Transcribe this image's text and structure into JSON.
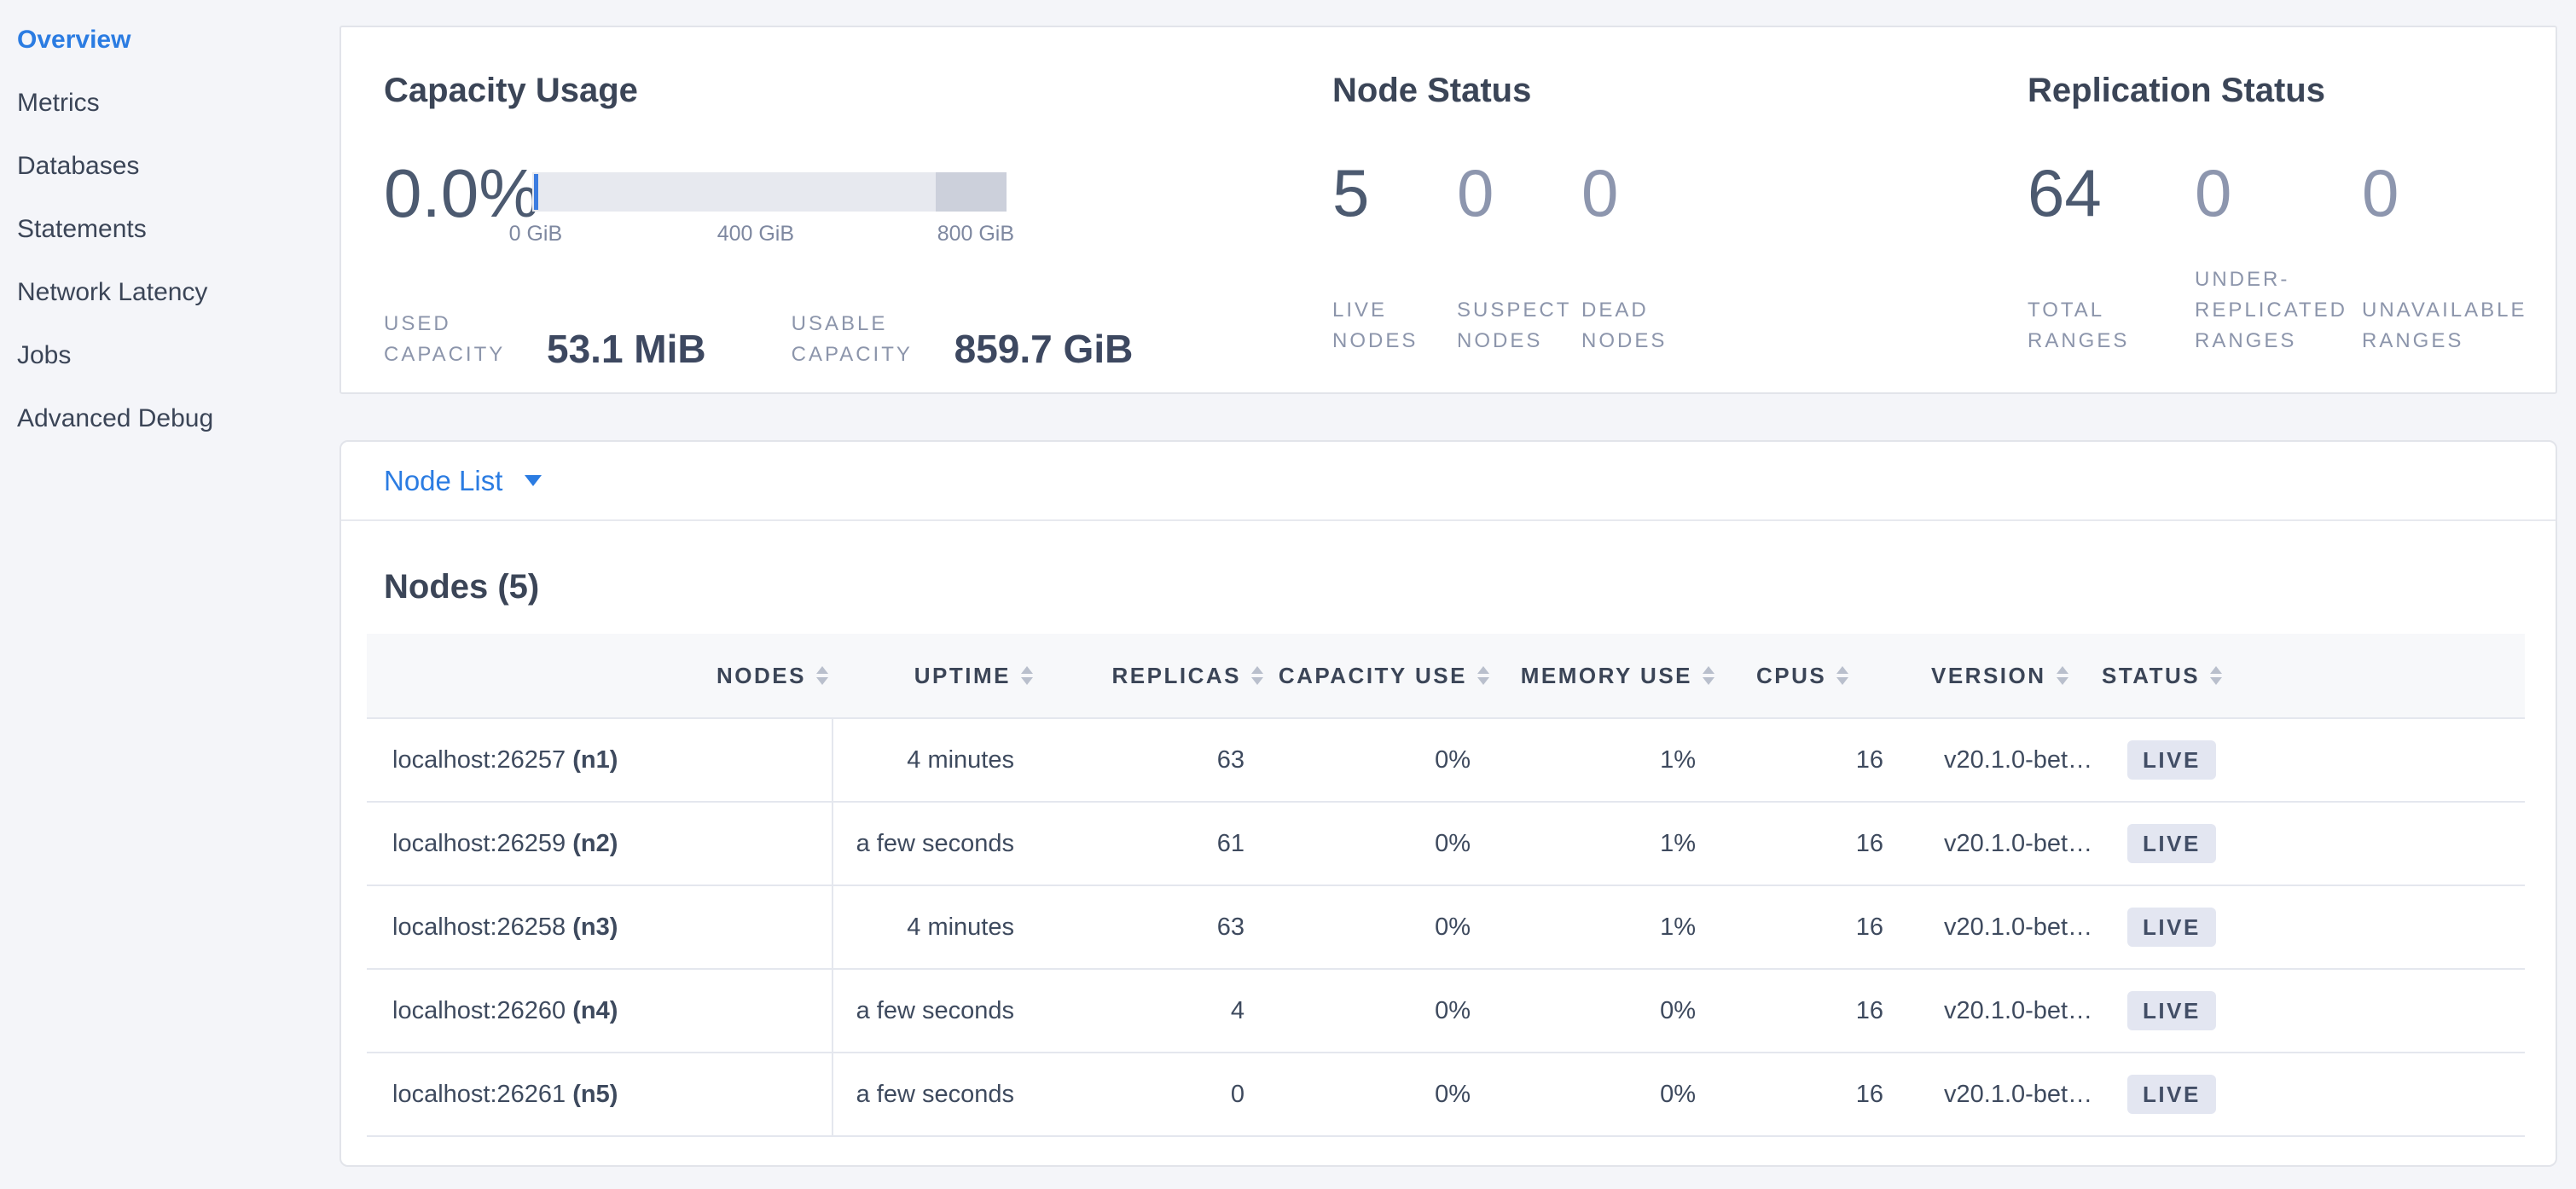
{
  "sidebar": {
    "items": [
      {
        "label": "Overview",
        "active": true
      },
      {
        "label": "Metrics"
      },
      {
        "label": "Databases"
      },
      {
        "label": "Statements"
      },
      {
        "label": "Network Latency"
      },
      {
        "label": "Jobs"
      },
      {
        "label": "Advanced Debug"
      }
    ]
  },
  "summary": {
    "capacity": {
      "title": "Capacity Usage",
      "percent": "0.0%",
      "gauge": {
        "used_pct": 0,
        "light_segment_end_pct": 85,
        "ticks": [
          {
            "pct": 0.7,
            "label": "0 GiB"
          },
          {
            "pct": 23.9,
            "label": ""
          },
          {
            "pct": 47.1,
            "label": "400 GiB"
          },
          {
            "pct": 70.3,
            "label": ""
          },
          {
            "pct": 93.5,
            "label": "800 GiB"
          }
        ]
      },
      "used": {
        "label": "USED CAPACITY",
        "value": "53.1 MiB"
      },
      "usable": {
        "label": "USABLE CAPACITY",
        "value": "859.7 GiB"
      }
    },
    "node_status": {
      "title": "Node Status",
      "metrics": [
        {
          "value": "5",
          "label": "LIVE NODES"
        },
        {
          "value": "0",
          "label": "SUSPECT NODES",
          "muted": true
        },
        {
          "value": "0",
          "label": "DEAD NODES",
          "muted": true
        }
      ]
    },
    "replication": {
      "title": "Replication Status",
      "metrics": [
        {
          "value": "64",
          "label": "TOTAL RANGES"
        },
        {
          "value": "0",
          "label": "UNDER-REPLICATED RANGES",
          "muted": true
        },
        {
          "value": "0",
          "label": "UNAVAILABLE RANGES",
          "muted": true
        }
      ]
    }
  },
  "node_list": {
    "dropdown_label": "Node List",
    "table_title": "Nodes (5)",
    "columns": [
      {
        "label": "NODES"
      },
      {
        "label": "UPTIME"
      },
      {
        "label": "REPLICAS"
      },
      {
        "label": "CAPACITY USE"
      },
      {
        "label": "MEMORY USE"
      },
      {
        "label": "CPUS"
      },
      {
        "label": "VERSION"
      },
      {
        "label": "STATUS"
      }
    ],
    "rows": [
      {
        "node": "localhost:26257",
        "node_id": "(n1)",
        "uptime": "4 minutes",
        "replicas": "63",
        "capacity_use": "0%",
        "memory_use": "1%",
        "cpus": "16",
        "version": "v20.1.0-bet…",
        "status": "LIVE"
      },
      {
        "node": "localhost:26259",
        "node_id": "(n2)",
        "uptime": "a few seconds",
        "replicas": "61",
        "capacity_use": "0%",
        "memory_use": "1%",
        "cpus": "16",
        "version": "v20.1.0-bet…",
        "status": "LIVE"
      },
      {
        "node": "localhost:26258",
        "node_id": "(n3)",
        "uptime": "4 minutes",
        "replicas": "63",
        "capacity_use": "0%",
        "memory_use": "1%",
        "cpus": "16",
        "version": "v20.1.0-bet…",
        "status": "LIVE"
      },
      {
        "node": "localhost:26260",
        "node_id": "(n4)",
        "uptime": "a few seconds",
        "replicas": "4",
        "capacity_use": "0%",
        "memory_use": "0%",
        "cpus": "16",
        "version": "v20.1.0-bet…",
        "status": "LIVE"
      },
      {
        "node": "localhost:26261",
        "node_id": "(n5)",
        "uptime": "a few seconds",
        "replicas": "0",
        "capacity_use": "0%",
        "memory_use": "0%",
        "cpus": "16",
        "version": "v20.1.0-bet…",
        "status": "LIVE"
      }
    ]
  },
  "colors": {
    "accent_blue": "#2b7ce2",
    "navy_text": "#3b4557",
    "muted_text": "#8c95ab",
    "badge_background": "#e3e6f1",
    "bar_light": "#e7e9ef",
    "bar_dark": "#ccd0db",
    "page_background": "#f4f5f9"
  }
}
